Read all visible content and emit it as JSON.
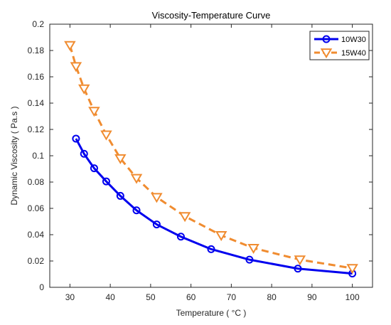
{
  "chart_data": {
    "type": "line",
    "title": "Viscosity-Temperature Curve",
    "xlabel": "Temperature ( °C )",
    "ylabel": "Dynamic Viscosity ( Pa.s )",
    "xlim": [
      25,
      105
    ],
    "ylim": [
      0,
      0.2
    ],
    "xticks": [
      "30",
      "40",
      "50",
      "60",
      "70",
      "80",
      "90",
      "100"
    ],
    "yticks": [
      "0",
      "0.02",
      "0.04",
      "0.06",
      "0.08",
      "0.1",
      "0.12",
      "0.14",
      "0.16",
      "0.18",
      "0.2"
    ],
    "grid": false,
    "legend_position": "top-right",
    "series": [
      {
        "name": "10W30",
        "color": "#0000ee",
        "line_style": "solid",
        "marker": "circle",
        "x": [
          31.5,
          33.5,
          36,
          39,
          42.5,
          46.5,
          51.5,
          57.5,
          65,
          74.5,
          86.5,
          100
        ],
        "y": [
          0.113,
          0.1015,
          0.0905,
          0.0805,
          0.0695,
          0.0585,
          0.0478,
          0.0385,
          0.029,
          0.021,
          0.0142,
          0.0105
        ]
      },
      {
        "name": "15W40",
        "color": "#f08c30",
        "line_style": "dashed",
        "marker": "triangle-down",
        "x": [
          30,
          31.5,
          33.5,
          36,
          39,
          42.5,
          46.5,
          51.5,
          58.5,
          67.5,
          75.5,
          87,
          100
        ],
        "y": [
          0.184,
          0.168,
          0.151,
          0.134,
          0.116,
          0.098,
          0.083,
          0.0685,
          0.054,
          0.0395,
          0.0298,
          0.021,
          0.0145
        ]
      }
    ]
  }
}
